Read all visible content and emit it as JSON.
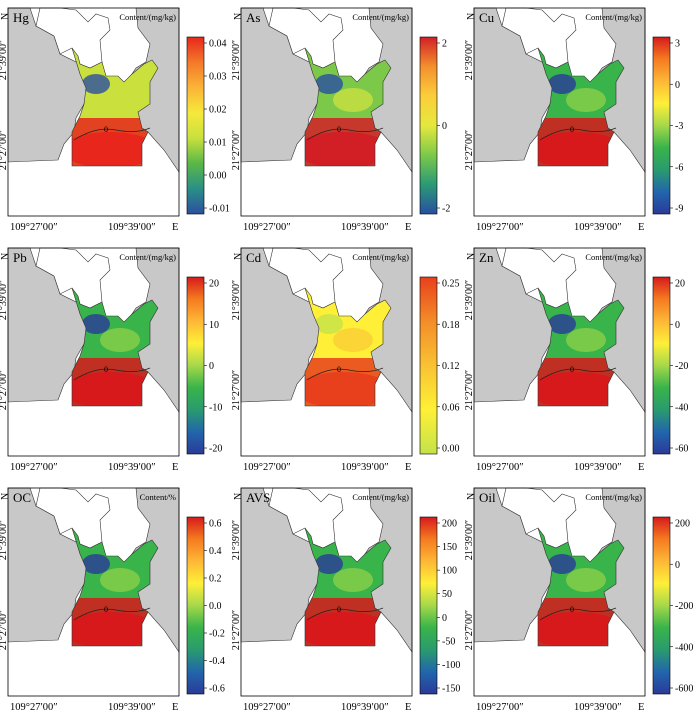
{
  "panels": [
    {
      "label": "Hg",
      "unit": "Content/(mg/kg)",
      "ticks": [
        "0.04",
        "0.03",
        "0.02",
        "0.01",
        "0.00",
        "-0.01"
      ],
      "scale": "hg"
    },
    {
      "label": "As",
      "unit": "Content/(mg/kg)",
      "ticks": [
        "2",
        "0",
        "-2"
      ],
      "scale": "as"
    },
    {
      "label": "Cu",
      "unit": "Content/(mg/kg)",
      "ticks": [
        "3",
        "0",
        "-3",
        "-6",
        "-9"
      ],
      "scale": "div"
    },
    {
      "label": "Pb",
      "unit": "Content/(mg/kg)",
      "ticks": [
        "20",
        "10",
        "0",
        "-10",
        "-20"
      ],
      "scale": "div"
    },
    {
      "label": "Cd",
      "unit": "Content/(mg/kg)",
      "ticks": [
        "0.25",
        "0.18",
        "0.12",
        "0.06",
        "0.00"
      ],
      "scale": "cd"
    },
    {
      "label": "Zn",
      "unit": "Content/(mg/kg)",
      "ticks": [
        "20",
        "0",
        "-20",
        "-40",
        "-60"
      ],
      "scale": "div"
    },
    {
      "label": "OC",
      "unit": "Content/%",
      "ticks": [
        "0.6",
        "0.4",
        "0.2",
        "0.0",
        "-0.2",
        "-0.4",
        "-0.6"
      ],
      "scale": "div"
    },
    {
      "label": "AVS",
      "unit": "Content/(mg/kg)",
      "ticks": [
        "200",
        "150",
        "100",
        "50",
        "0",
        "-50",
        "-100",
        "-150"
      ],
      "scale": "div"
    },
    {
      "label": "Oil",
      "unit": "Content/(mg/kg)",
      "ticks": [
        "200",
        "0",
        "-200",
        "-400",
        "-600"
      ],
      "scale": "div"
    }
  ],
  "axes": {
    "x_west": "109°27′00″",
    "x_east": "109°39′00″",
    "x_dir": "E",
    "y_north": "21°39′00″",
    "y_south": "21°27′00″",
    "y_dir": "N",
    "contour_label": "0"
  },
  "colors": {
    "land": "#c8c8c8",
    "water": "#ffffff",
    "scale_div": [
      "#d7191c",
      "#f57b20",
      "#fdb736",
      "#ffef38",
      "#a6d84a",
      "#39b44a",
      "#2a9b6e",
      "#2166ac",
      "#2b3a98"
    ],
    "scale_hg": [
      "#e8261c",
      "#f3792a",
      "#fbb437",
      "#f6e93b",
      "#c9e03d",
      "#59b847",
      "#2a8f86",
      "#2c4fa0"
    ],
    "scale_as": [
      "#d21f26",
      "#f2902e",
      "#fbce3a",
      "#e6e83e",
      "#7cc94a",
      "#2b9a74",
      "#284fa1"
    ],
    "scale_cd": [
      "#e8401c",
      "#f38d28",
      "#f9c233",
      "#fff037",
      "#c4e24a"
    ]
  }
}
